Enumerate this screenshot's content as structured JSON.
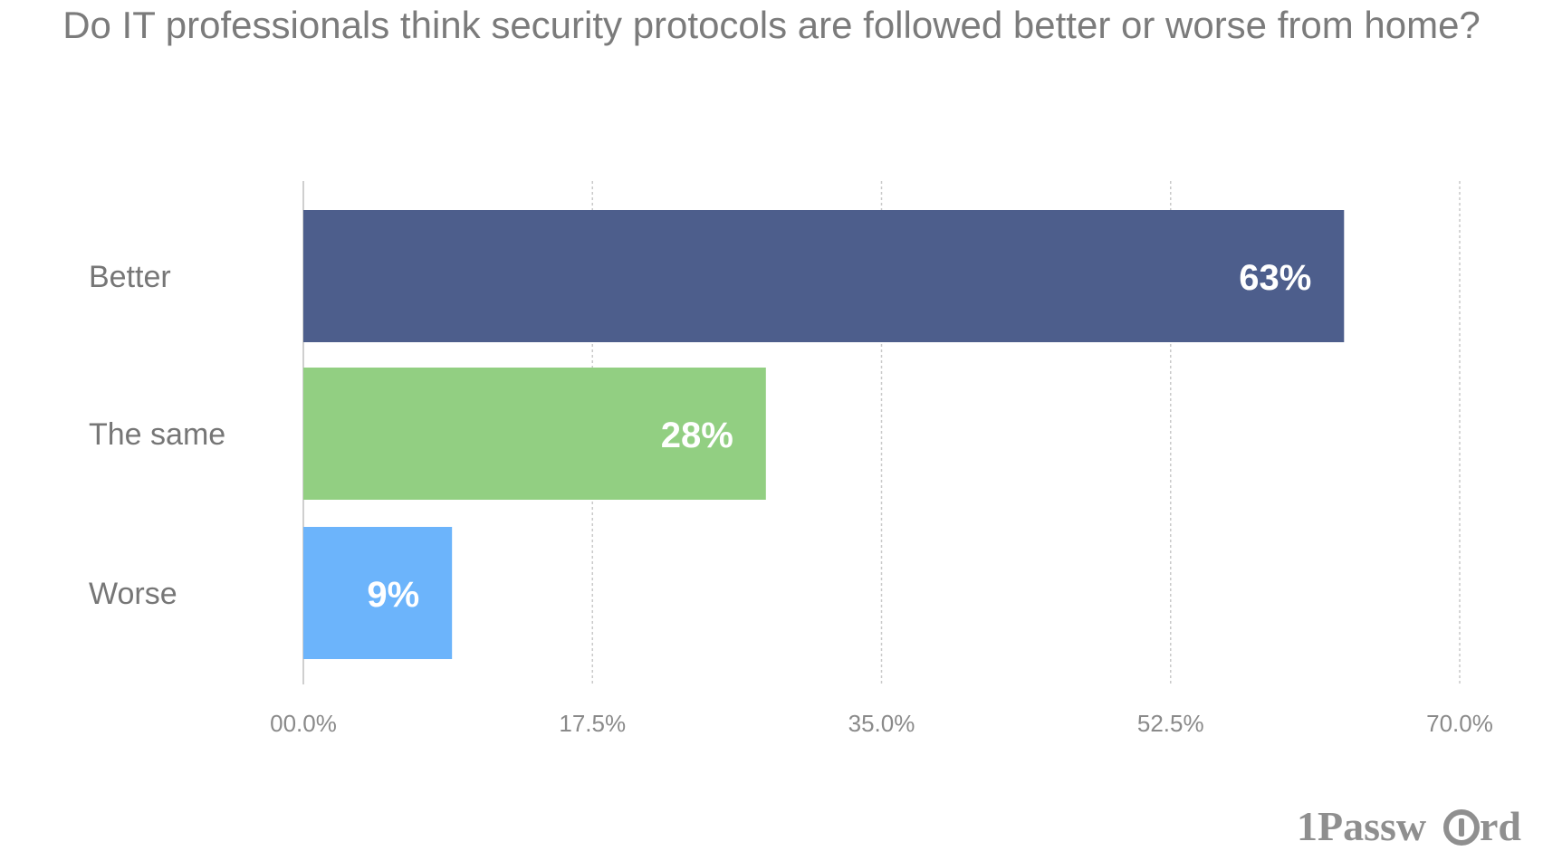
{
  "chart_data": {
    "type": "bar",
    "orientation": "horizontal",
    "title": "Do IT professionals think security protocols are followed better or worse from home?",
    "categories": [
      "Better",
      "The same",
      "Worse"
    ],
    "values": [
      63,
      28,
      9
    ],
    "data_labels": [
      "63%",
      "28%",
      "9%"
    ],
    "colors": [
      "#4d5e8c",
      "#92cf82",
      "#6cb4fb"
    ],
    "xlim": [
      0,
      70
    ],
    "xticks": [
      0,
      17.5,
      35,
      52.5,
      70
    ],
    "xtick_labels": [
      "00.0%",
      "17.5%",
      "35.0%",
      "52.5%",
      "70.0%"
    ],
    "grid": true,
    "xlabel": "",
    "ylabel": ""
  },
  "brand": {
    "name": "1Password",
    "color": "#8f8f8f"
  }
}
